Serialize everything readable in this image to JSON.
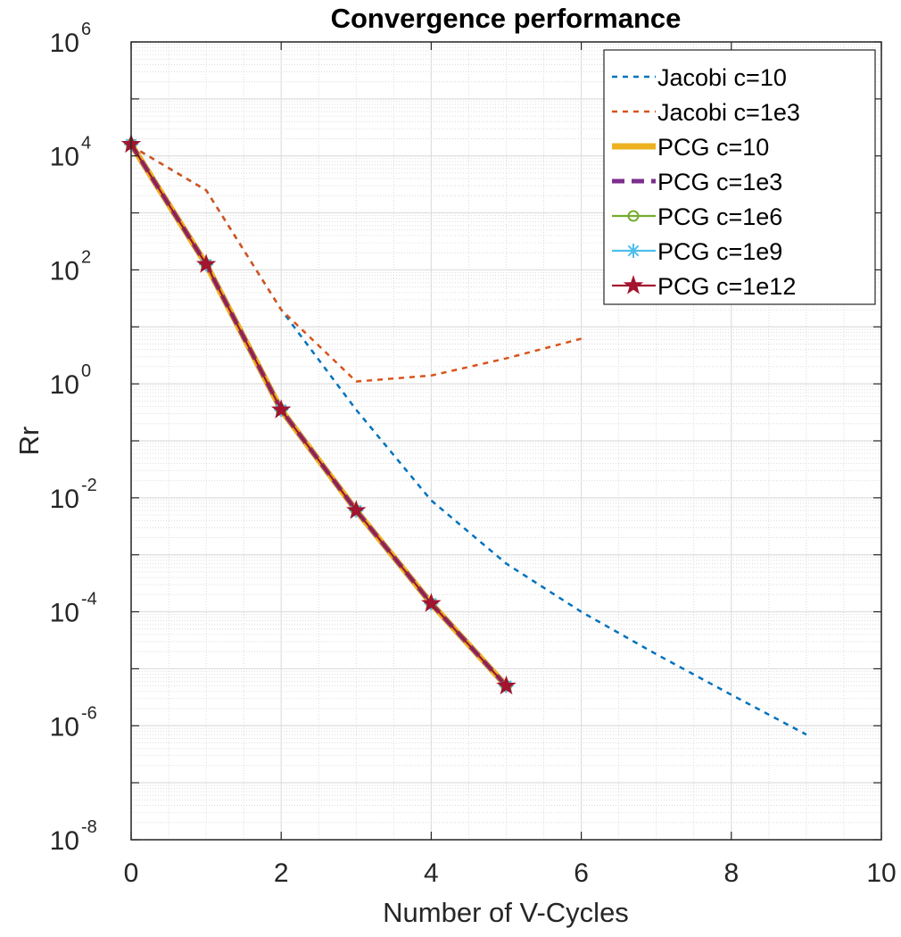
{
  "chart_data": {
    "type": "line",
    "title": "Convergence performance",
    "xlabel": "Number of V-Cycles",
    "ylabel": "Rr",
    "xlim": [
      0,
      10
    ],
    "ylim_log10": [
      -8,
      6
    ],
    "yscale": "log",
    "x_ticks": [
      "0",
      "2",
      "4",
      "6",
      "8",
      "10"
    ],
    "y_ticks": [
      {
        "base": "10",
        "exp": "-8"
      },
      {
        "base": "10",
        "exp": "-6"
      },
      {
        "base": "10",
        "exp": "-4"
      },
      {
        "base": "10",
        "exp": "-2"
      },
      {
        "base": "10",
        "exp": "0"
      },
      {
        "base": "10",
        "exp": "2"
      },
      {
        "base": "10",
        "exp": "4"
      },
      {
        "base": "10",
        "exp": "6"
      }
    ],
    "grid": true,
    "legend_position": "top-right",
    "series": [
      {
        "name": "Jacobi c=10",
        "color": "#0072BD",
        "style": "dashed",
        "marker": "none",
        "x": [
          0,
          1,
          2,
          3,
          4,
          5,
          6,
          7,
          8,
          9
        ],
        "y": [
          15000,
          2500,
          20,
          0.35,
          0.009,
          0.0007,
          0.0001,
          1.8e-05,
          3.5e-06,
          7e-07
        ]
      },
      {
        "name": "Jacobi c=1e3",
        "color": "#D95319",
        "style": "dashed",
        "marker": "none",
        "x": [
          0,
          1,
          2,
          3,
          4,
          5,
          6
        ],
        "y": [
          15000,
          2500,
          20,
          1.1,
          1.4,
          2.8,
          6.2
        ]
      },
      {
        "name": "PCG c=10",
        "color": "#EDB120",
        "style": "thick-solid",
        "marker": "none",
        "x": [
          0,
          1,
          2,
          3,
          4,
          5
        ],
        "y": [
          16000,
          125,
          0.35,
          0.006,
          0.00014,
          5e-06
        ]
      },
      {
        "name": "PCG c=1e3",
        "color": "#7E2F8E",
        "style": "thick-dashed",
        "marker": "none",
        "x": [
          0,
          1,
          2,
          3,
          4,
          5
        ],
        "y": [
          16000,
          125,
          0.35,
          0.006,
          0.00014,
          5e-06
        ]
      },
      {
        "name": "PCG c=1e6",
        "color": "#77AC30",
        "style": "solid",
        "marker": "circle",
        "x": [
          0,
          1,
          2,
          3,
          4,
          5
        ],
        "y": [
          16000,
          125,
          0.35,
          0.006,
          0.00014,
          5e-06
        ]
      },
      {
        "name": "PCG c=1e9",
        "color": "#4DBEEE",
        "style": "solid",
        "marker": "asterisk",
        "x": [
          0,
          1,
          2,
          3,
          4,
          5
        ],
        "y": [
          16000,
          125,
          0.35,
          0.006,
          0.00014,
          5e-06
        ]
      },
      {
        "name": "PCG c=1e12",
        "color": "#A2142F",
        "style": "solid",
        "marker": "star",
        "x": [
          0,
          1,
          2,
          3,
          4,
          5
        ],
        "y": [
          16000,
          125,
          0.35,
          0.006,
          0.00014,
          5e-06
        ]
      }
    ]
  }
}
